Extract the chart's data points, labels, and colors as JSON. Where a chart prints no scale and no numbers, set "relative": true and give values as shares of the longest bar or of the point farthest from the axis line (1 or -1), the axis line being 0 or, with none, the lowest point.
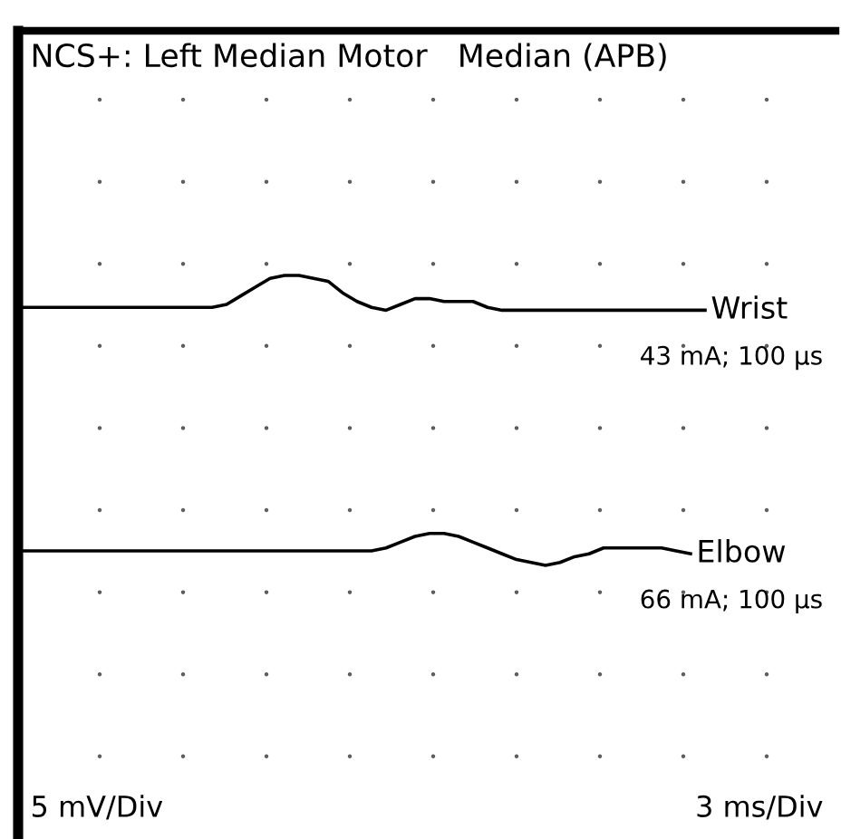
{
  "chart_data": {
    "type": "line",
    "relative": true,
    "legend": false,
    "marker": "none",
    "line_style": "solid",
    "title": "NCS+: Left Median Motor   Median (APB)",
    "annotations": [
      "43 mA; 100 µs",
      "66 mA; 100 µs",
      "5 mV/Div",
      "3 ms/Div"
    ],
    "categories": [
      null,
      null,
      null,
      null,
      null,
      null,
      null,
      null,
      null,
      null,
      null,
      null,
      null,
      null,
      null,
      null,
      null,
      null,
      null,
      null,
      null,
      null,
      null,
      null,
      null,
      null,
      null,
      null,
      null,
      null,
      null,
      null,
      null,
      null,
      null,
      null,
      null,
      null,
      null,
      null,
      null,
      null,
      null,
      null,
      null,
      null,
      null,
      null
    ],
    "series": [
      {
        "name": "Wrist",
        "color": "#000000",
        "values": [
          0.89,
          0.89,
          0.89,
          0.89,
          0.89,
          0.89,
          0.89,
          0.89,
          0.89,
          0.89,
          0.89,
          0.89,
          0.89,
          0.89,
          0.9,
          0.93,
          0.96,
          0.99,
          1,
          1,
          0.99,
          0.98,
          0.94,
          0.91,
          0.89,
          0.88,
          0.9,
          0.92,
          0.92,
          0.91,
          0.91,
          0.91,
          0.89,
          0.88,
          0.88,
          0.88,
          0.88,
          0.88,
          0.88,
          0.88,
          0.88,
          0.88,
          0.88,
          0.88,
          0.88,
          0.88,
          0.88,
          0.88
        ]
      },
      {
        "name": "Elbow",
        "color": "#000000",
        "values": [
          0.05,
          0.05,
          0.05,
          0.05,
          0.05,
          0.05,
          0.05,
          0.05,
          0.05,
          0.05,
          0.05,
          0.05,
          0.05,
          0.05,
          0.05,
          0.05,
          0.05,
          0.05,
          0.05,
          0.05,
          0.05,
          0.05,
          0.05,
          0.05,
          0.05,
          0.06,
          0.08,
          0.1,
          0.11,
          0.11,
          0.1,
          0.08,
          0.06,
          0.04,
          0.02,
          0.01,
          0,
          0.01,
          0.03,
          0.04,
          0.06,
          0.06,
          0.06,
          0.06,
          0.06,
          0.05,
          0.04,
          null
        ]
      }
    ]
  }
}
